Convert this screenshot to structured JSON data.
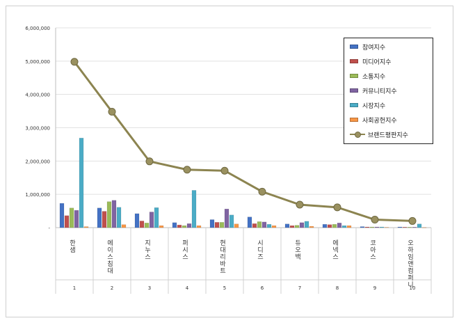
{
  "chart_data": {
    "type": "bar",
    "categories": [
      "한샘",
      "에이스침대",
      "지누스",
      "퍼시스",
      "현대리바트",
      "시디즈",
      "듀오백",
      "에넥스",
      "코아스",
      "오하임앤컴퍼니"
    ],
    "ranks": [
      "1",
      "2",
      "3",
      "4",
      "5",
      "6",
      "7",
      "8",
      "9",
      "10"
    ],
    "ylim": [
      0,
      6000000
    ],
    "yticks": [
      0,
      1000000,
      2000000,
      3000000,
      4000000,
      5000000,
      6000000
    ],
    "ytick_labels": [
      "-",
      "1,000,000",
      "2,000,000",
      "3,000,000",
      "4,000,000",
      "5,000,000",
      "6,000,000"
    ],
    "grid": true,
    "legend_position": "top-right",
    "series": [
      {
        "name": "참여지수",
        "type": "bar",
        "color": "#4472c4",
        "values": [
          730000,
          590000,
          420000,
          150000,
          240000,
          320000,
          110000,
          100000,
          30000,
          20000
        ]
      },
      {
        "name": "미디어지수",
        "type": "bar",
        "color": "#c0504d",
        "values": [
          360000,
          490000,
          200000,
          80000,
          160000,
          120000,
          60000,
          90000,
          20000,
          15000
        ]
      },
      {
        "name": "소통지수",
        "type": "bar",
        "color": "#9bbb59",
        "values": [
          590000,
          780000,
          140000,
          60000,
          160000,
          180000,
          70000,
          100000,
          20000,
          15000
        ]
      },
      {
        "name": "커뮤니티지수",
        "type": "bar",
        "color": "#8064a2",
        "values": [
          520000,
          820000,
          470000,
          120000,
          560000,
          170000,
          150000,
          140000,
          20000,
          15000
        ]
      },
      {
        "name": "시장지수",
        "type": "bar",
        "color": "#4bacc6",
        "values": [
          2690000,
          610000,
          600000,
          1120000,
          380000,
          100000,
          190000,
          60000,
          20000,
          110000
        ]
      },
      {
        "name": "사회공헌지수",
        "type": "bar",
        "color": "#f79646",
        "values": [
          30000,
          90000,
          60000,
          60000,
          110000,
          60000,
          40000,
          60000,
          10000,
          5000
        ]
      },
      {
        "name": "브랜드평판지수",
        "type": "line",
        "color": "#9a9160",
        "values": [
          4980000,
          3480000,
          1990000,
          1740000,
          1710000,
          1080000,
          690000,
          610000,
          240000,
          200000
        ]
      }
    ]
  }
}
